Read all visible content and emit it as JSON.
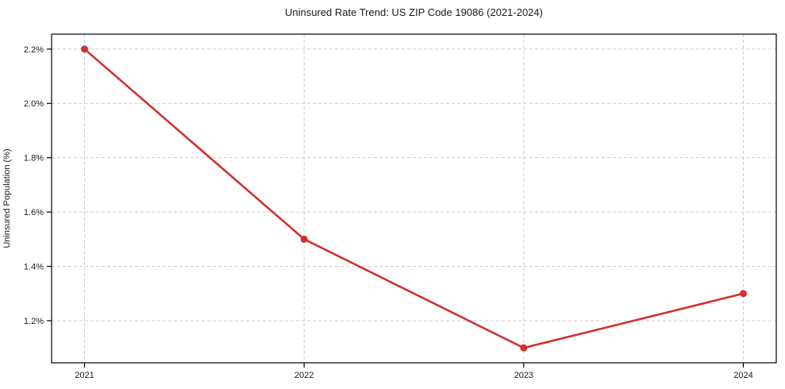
{
  "page": {
    "background": "#ffffff"
  },
  "chart_data": {
    "type": "line",
    "title": "Uninsured Rate Trend: US ZIP Code 19086 (2021-2024)",
    "xlabel": "",
    "ylabel": "Uninsured Population (%)",
    "x": [
      2021,
      2022,
      2023,
      2024
    ],
    "categories": [
      "2021",
      "2022",
      "2023",
      "2024"
    ],
    "values": [
      2.2,
      1.5,
      1.1,
      1.3
    ],
    "ytick_values": [
      1.2,
      1.4,
      1.6,
      1.8,
      2.0,
      2.2
    ],
    "ytick_labels": [
      "1.2%",
      "1.4%",
      "1.6%",
      "1.8%",
      "2.0%",
      "2.2%"
    ],
    "xlim": [
      2020.85,
      2024.15
    ],
    "ylim": [
      1.045,
      2.255
    ],
    "grid": true,
    "grid_style": "dashed",
    "legend_position": "none",
    "line_color": "#d32f2f",
    "marker": "circle",
    "marker_radius": 4.5,
    "line_width": 2.6,
    "grid_color": "#cccccc",
    "axis_color": "#000000",
    "text_color": "#1a1a1a"
  }
}
